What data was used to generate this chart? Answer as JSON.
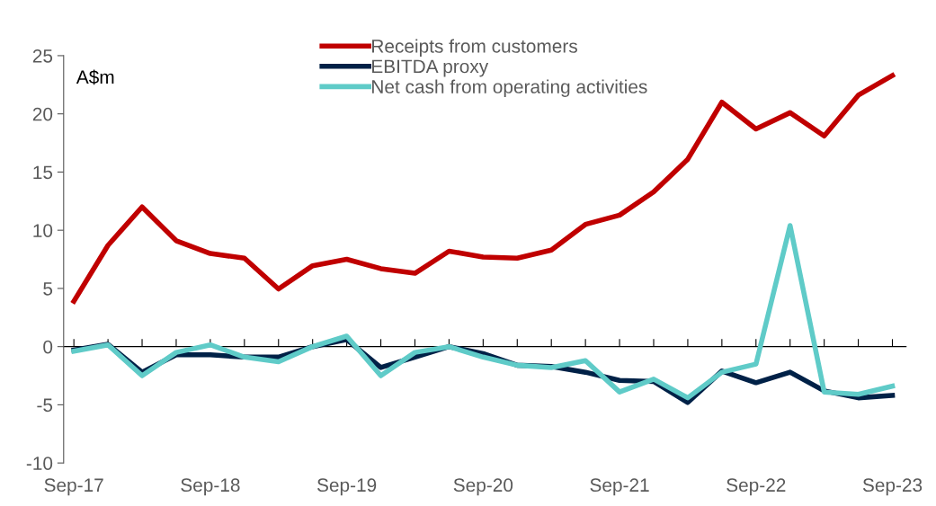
{
  "chart_data": {
    "type": "line",
    "ylabel": "A$m",
    "categories": [
      "Sep-17",
      null,
      null,
      null,
      "Sep-18",
      null,
      null,
      null,
      "Sep-19",
      null,
      null,
      null,
      "Sep-20",
      null,
      null,
      null,
      "Sep-21",
      null,
      null,
      null,
      "Sep-22",
      null,
      null,
      null,
      "Sep-23"
    ],
    "series": [
      {
        "name": "Receipts from customers",
        "color": "#c00000",
        "values": [
          3.9,
          8.7,
          12.0,
          9.1,
          8.0,
          7.6,
          4.95,
          6.95,
          7.5,
          6.7,
          6.3,
          8.2,
          7.7,
          7.6,
          8.3,
          10.5,
          11.3,
          13.3,
          16.1,
          21.0,
          18.7,
          20.1,
          18.1,
          21.6,
          23.3
        ]
      },
      {
        "name": "EBITDA proxy",
        "color": "#002147",
        "values": [
          -0.3,
          0.2,
          -2.2,
          -0.7,
          -0.7,
          -0.9,
          -0.9,
          0.0,
          0.6,
          -1.8,
          -0.9,
          0.0,
          -0.6,
          -1.6,
          -1.7,
          -2.2,
          -2.9,
          -3.0,
          -4.8,
          -2.1,
          -3.1,
          -2.2,
          -3.8,
          -4.4,
          -4.2
        ]
      },
      {
        "name": "Net cash from operating activities",
        "color": "#5fcbc8",
        "values": [
          -0.4,
          0.15,
          -2.5,
          -0.5,
          0.15,
          -0.9,
          -1.3,
          0.0,
          0.9,
          -2.5,
          -0.5,
          0.0,
          -0.9,
          -1.6,
          -1.8,
          -1.2,
          -3.9,
          -2.8,
          -4.4,
          -2.2,
          -1.5,
          10.4,
          -3.9,
          -4.1,
          -3.4
        ]
      }
    ],
    "ylim": [
      -10,
      25
    ],
    "yticks": [
      -10,
      -5,
      0,
      5,
      10,
      15,
      20,
      25
    ],
    "legend": "top",
    "marker": "none",
    "line_style": "solid"
  }
}
